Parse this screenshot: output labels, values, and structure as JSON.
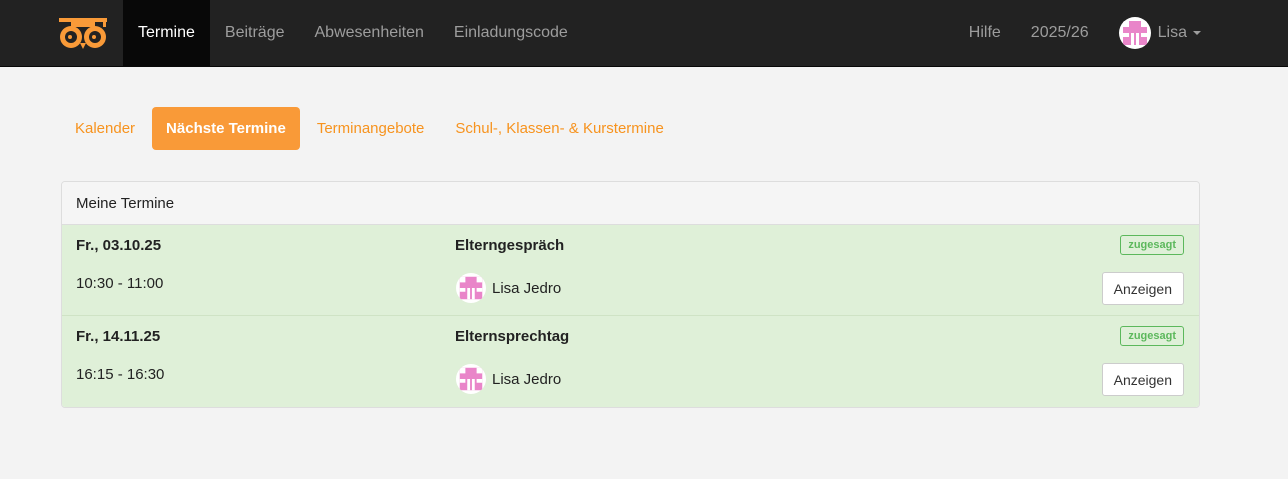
{
  "nav": {
    "items": [
      {
        "label": "Termine",
        "active": true
      },
      {
        "label": "Beiträge"
      },
      {
        "label": "Abwesenheiten"
      },
      {
        "label": "Einladungscode"
      }
    ],
    "help": "Hilfe",
    "year": "2025/26",
    "user": "Lisa"
  },
  "tabs": [
    {
      "label": "Kalender"
    },
    {
      "label": "Nächste Termine",
      "active": true
    },
    {
      "label": "Terminangebote"
    },
    {
      "label": "Schul-, Klassen- & Kurstermine"
    }
  ],
  "panel": {
    "title": "Meine Termine",
    "rows": [
      {
        "date": "Fr., 03.10.25",
        "time": "10:30 - 11:00",
        "title": "Elterngespräch",
        "person": "Lisa Jedro",
        "status": "zugesagt",
        "action": "Anzeigen"
      },
      {
        "date": "Fr., 14.11.25",
        "time": "16:15 - 16:30",
        "title": "Elternsprechtag",
        "person": "Lisa Jedro",
        "status": "zugesagt",
        "action": "Anzeigen"
      }
    ]
  },
  "colors": {
    "accent": "#f99a38",
    "success": "#5cb85c",
    "rowBg": "#dff0d8",
    "avatar": "#e985c9"
  }
}
